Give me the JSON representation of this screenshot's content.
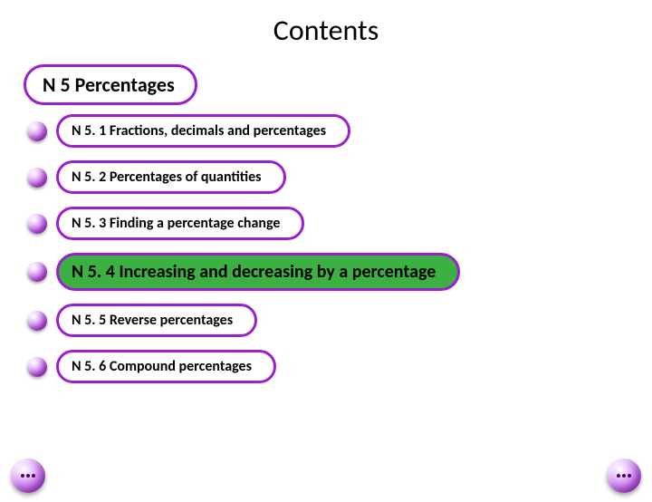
{
  "colors": {
    "border_purple": "#9b1fd1",
    "active_fill": "#3cb043"
  },
  "title": "Contents",
  "header": {
    "label": "N 5 Percentages"
  },
  "items": [
    {
      "label": "N 5. 1 Fractions, decimals and percentages",
      "active": false
    },
    {
      "label": "N 5. 2 Percentages of quantities",
      "active": false
    },
    {
      "label": "N 5. 3 Finding a percentage change",
      "active": false
    },
    {
      "label": "N 5. 4 Increasing and decreasing by a percentage",
      "active": true
    },
    {
      "label": "N 5. 5 Reverse percentages",
      "active": false
    },
    {
      "label": "N 5. 6 Compound percentages",
      "active": false
    }
  ]
}
